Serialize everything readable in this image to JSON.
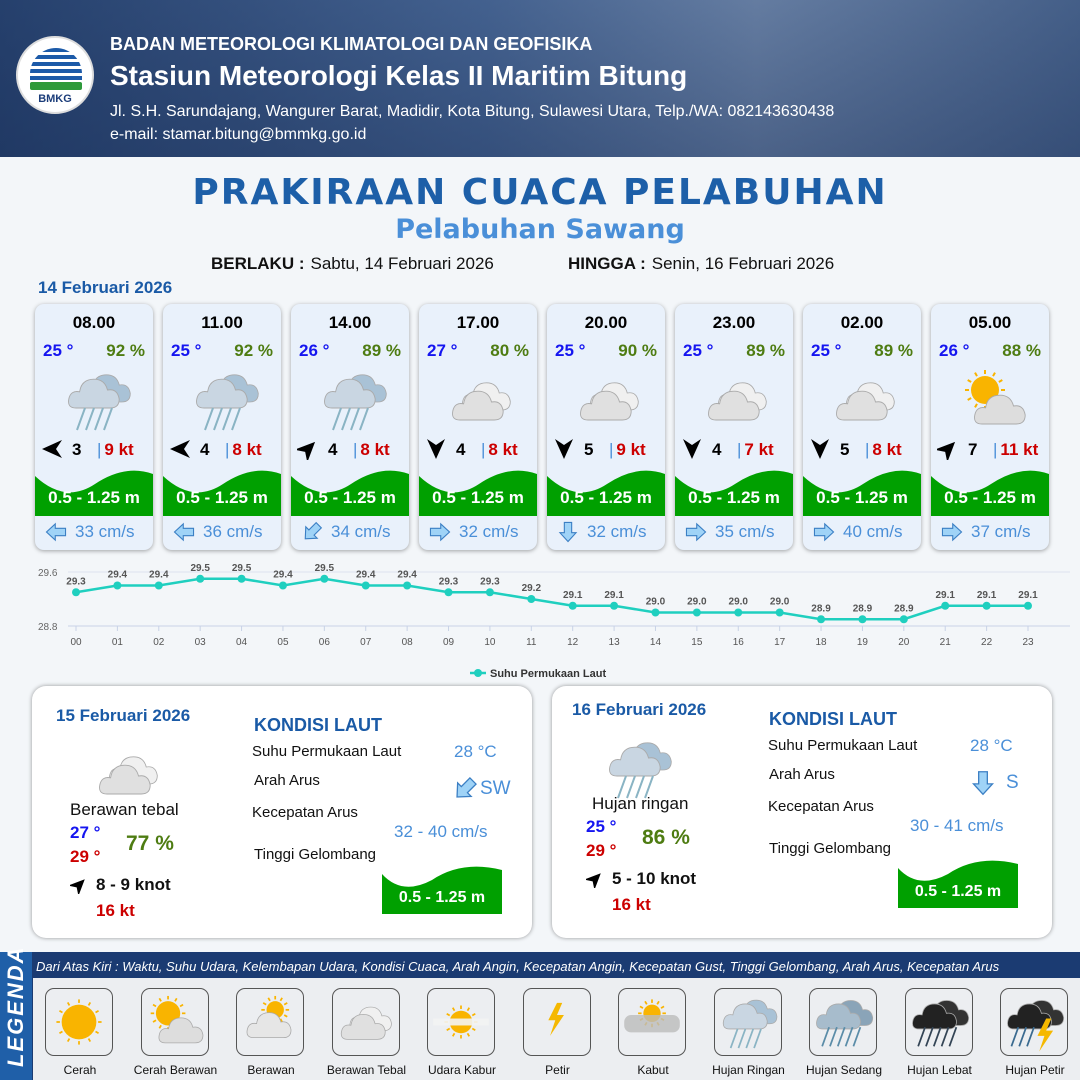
{
  "header": {
    "org": "BADAN METEOROLOGI KLIMATOLOGI DAN GEOFISIKA",
    "station": "Stasiun Meteorologi Kelas II Maritim Bitung",
    "address": "Jl. S.H. Sarundajang, Wangurer Barat, Madidir, Kota Bitung, Sulawesi Utara, Telp./WA: 082143630438",
    "email": "e-mail: stamar.bitung@bmmkg.go.id",
    "logo_text": "BMKG"
  },
  "title": "PRAKIRAAN CUACA PELABUHAN",
  "subtitle": "Pelabuhan Sawang",
  "validity": {
    "from_label": "BERLAKU :",
    "from": "Sabtu, 14 Februari 2026",
    "to_label": "HINGGA :",
    "to": "Senin, 16 Februari 2026"
  },
  "day1": {
    "date": "14 Februari 2026",
    "forecasts": [
      {
        "time": "08.00",
        "temp": "25 °",
        "hum": "92 %",
        "icon": "hujan-ringan",
        "wind_to": "W",
        "wind": "3",
        "gust": "9 kt",
        "wave": "0.5 - 1.25 m",
        "current_to": "W",
        "current": "33 cm/s"
      },
      {
        "time": "11.00",
        "temp": "25 °",
        "hum": "92 %",
        "icon": "hujan-ringan",
        "wind_to": "W",
        "wind": "4",
        "gust": "8 kt",
        "wave": "0.5 - 1.25 m",
        "current_to": "W",
        "current": "36 cm/s"
      },
      {
        "time": "14.00",
        "temp": "26 °",
        "hum": "89 %",
        "icon": "hujan-ringan",
        "wind_to": "NE",
        "wind": "4",
        "gust": "8 kt",
        "wave": "0.5 - 1.25 m",
        "current_to": "SW",
        "current": "34 cm/s"
      },
      {
        "time": "17.00",
        "temp": "27 °",
        "hum": "80 %",
        "icon": "berawan-tebal",
        "wind_to": "S",
        "wind": "4",
        "gust": "8 kt",
        "wave": "0.5 - 1.25 m",
        "current_to": "E",
        "current": "32 cm/s"
      },
      {
        "time": "20.00",
        "temp": "25 °",
        "hum": "90 %",
        "icon": "berawan-tebal",
        "wind_to": "S",
        "wind": "5",
        "gust": "9 kt",
        "wave": "0.5 - 1.25 m",
        "current_to": "S",
        "current": "32 cm/s"
      },
      {
        "time": "23.00",
        "temp": "25 °",
        "hum": "89 %",
        "icon": "berawan-tebal",
        "wind_to": "S",
        "wind": "4",
        "gust": "7 kt",
        "wave": "0.5 - 1.25 m",
        "current_to": "E",
        "current": "35 cm/s"
      },
      {
        "time": "02.00",
        "temp": "25 °",
        "hum": "89 %",
        "icon": "berawan-tebal",
        "wind_to": "S",
        "wind": "5",
        "gust": "8 kt",
        "wave": "0.5 - 1.25 m",
        "current_to": "E",
        "current": "40 cm/s"
      },
      {
        "time": "05.00",
        "temp": "26 °",
        "hum": "88 %",
        "icon": "cerah-berawan",
        "wind_to": "NE",
        "wind": "7",
        "gust": "11 kt",
        "wave": "0.5 - 1.25 m",
        "current_to": "E",
        "current": "37 cm/s"
      }
    ]
  },
  "chart_data": {
    "type": "line",
    "categories": [
      "00",
      "01",
      "02",
      "03",
      "04",
      "05",
      "06",
      "07",
      "08",
      "09",
      "10",
      "11",
      "12",
      "13",
      "14",
      "15",
      "16",
      "17",
      "18",
      "19",
      "20",
      "21",
      "22",
      "23"
    ],
    "series": [
      {
        "name": "Suhu Permukaan Laut",
        "values": [
          29.3,
          29.4,
          29.4,
          29.5,
          29.5,
          29.4,
          29.5,
          29.4,
          29.4,
          29.3,
          29.3,
          29.2,
          29.1,
          29.1,
          29.0,
          29.0,
          29.0,
          29.0,
          28.9,
          28.9,
          28.9,
          29.1,
          29.1,
          29.1
        ]
      }
    ],
    "ylim": [
      28.8,
      29.6
    ],
    "yticks": [
      "28.8",
      "29.6"
    ],
    "grid": true,
    "legend": "bottom",
    "color": "#1fcfbf"
  },
  "days": [
    {
      "date": "15 Februari 2026",
      "icon": "berawan-tebal",
      "condition": "Berawan tebal",
      "tmin": "27 °",
      "tmax": "29 °",
      "hum": "77 %",
      "wind_to": "NE",
      "wind": "8  - 9 knot",
      "gust": "16 kt",
      "sea_title": "KONDISI LAUT",
      "sst_label": "Suhu Permukaan Laut",
      "sst": "28 °C",
      "dir_label": "Arah Arus",
      "dir": "SW",
      "dir_to": "SW",
      "spd_label": "Kecepatan Arus",
      "spd": "32 - 40 cm/s",
      "wave_label": "Tinggi Gelombang",
      "wave": "0.5 - 1.25 m"
    },
    {
      "date": "16 Februari 2026",
      "icon": "hujan-ringan",
      "condition": "Hujan ringan",
      "tmin": "25 °",
      "tmax": "29 °",
      "hum": "86 %",
      "wind_to": "NE",
      "wind": "5 - 10 knot",
      "gust": "16 kt",
      "sea_title": "KONDISI LAUT",
      "sst_label": "Suhu Permukaan Laut",
      "sst": "28 °C",
      "dir_label": "Arah Arus",
      "dir": "S",
      "dir_to": "S",
      "spd_label": "Kecepatan Arus",
      "spd": "30 - 41 cm/s",
      "wave_label": "Tinggi Gelombang",
      "wave": "0.5 - 1.25 m"
    }
  ],
  "legend": {
    "title": "LEGENDA",
    "note": "Dari Atas Kiri : Waktu, Suhu Udara, Kelembapan Udara, Kondisi Cuaca, Arah Angin, Kecepatan Angin, Kecepatan Gust, Tinggi Gelombang, Arah Arus, Kecepatan Arus",
    "items": [
      {
        "label": "Cerah",
        "icon": "cerah"
      },
      {
        "label": "Cerah Berawan",
        "icon": "cerah-berawan"
      },
      {
        "label": "Berawan",
        "icon": "berawan"
      },
      {
        "label": "Berawan Tebal",
        "icon": "berawan-tebal"
      },
      {
        "label": "Udara Kabur",
        "icon": "udara-kabur"
      },
      {
        "label": "Petir",
        "icon": "petir"
      },
      {
        "label": "Kabut",
        "icon": "kabut"
      },
      {
        "label": "Hujan Ringan",
        "icon": "hujan-ringan"
      },
      {
        "label": "Hujan Sedang",
        "icon": "hujan-sedang"
      },
      {
        "label": "Hujan Lebat",
        "icon": "hujan-lebat"
      },
      {
        "label": "Hujan Petir",
        "icon": "hujan-petir"
      }
    ]
  },
  "colors": {
    "title": "#1d5fa8",
    "temp": "#1515f0",
    "humidity": "#4e7c12",
    "gust": "#c00000",
    "wave": "#00a000",
    "current": "#4a8fd8"
  }
}
